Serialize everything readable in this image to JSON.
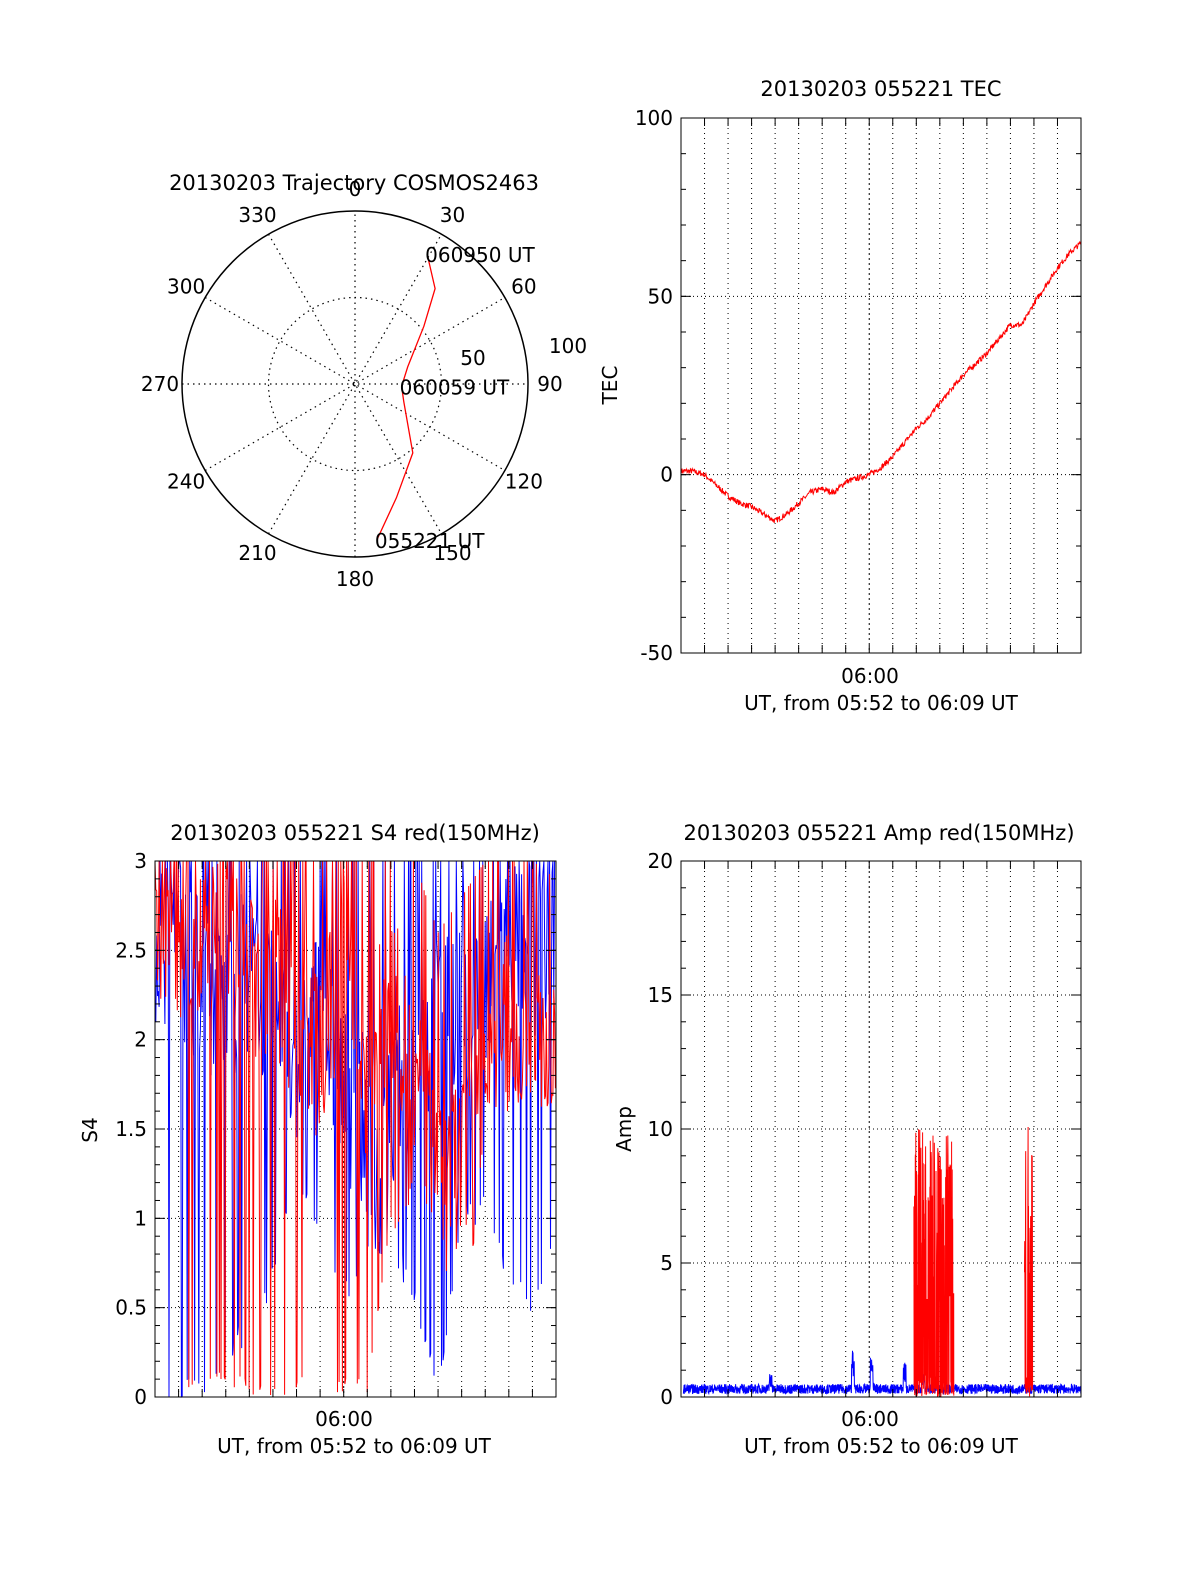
{
  "colors": {
    "red": "#ff0000",
    "blue": "#0000ff",
    "axis": "#000000",
    "grid": "#000000"
  },
  "polar": {
    "title": "20130203 Trajectory COSMOS2463",
    "azimuth_labels": [
      "0",
      "30",
      "60",
      "90",
      "120",
      "150",
      "180",
      "210",
      "240",
      "270",
      "300",
      "330"
    ],
    "radius_labels": [
      "50",
      "100"
    ],
    "chart_data": {
      "type": "scatter",
      "coordinate": "polar",
      "angle_unit": "deg azimuth, clockwise from north",
      "radius_meaning": "zenith angle (deg)",
      "r_max": 100,
      "r_grid": [
        50,
        100
      ],
      "series": [
        {
          "color": "#ff0000",
          "points": [
            {
              "az": 172,
              "r": 91
            },
            {
              "az": 160,
              "r": 70
            },
            {
              "az": 140,
              "r": 52
            },
            {
              "az": 110,
              "r": 30
            },
            {
              "az": 93,
              "r": 27
            },
            {
              "az": 72,
              "r": 32
            },
            {
              "az": 50,
              "r": 52
            },
            {
              "az": 40,
              "r": 72
            },
            {
              "az": 29,
              "r": 86
            }
          ]
        }
      ],
      "annotations": [
        {
          "text": "060950 UT",
          "az": 29,
          "r": 86
        },
        {
          "text": "060059 UT",
          "az": 93,
          "r": 27
        },
        {
          "text": "055221 UT",
          "az": 172,
          "r": 91
        }
      ]
    }
  },
  "tec": {
    "title": "20130203 055221 TEC",
    "ylabel": "TEC",
    "xtick_label": "06:00",
    "xlabel": "UT, from 05:52 to 06:09 UT",
    "chart_data": {
      "type": "line",
      "x_unit": "minutes after 05:52 UT",
      "xlim": [
        0,
        17
      ],
      "ylim": [
        -50,
        100
      ],
      "yticks": [
        -50,
        0,
        50,
        100
      ],
      "series": [
        {
          "color": "#ff0000",
          "x": [
            0,
            0.5,
            1,
            1.5,
            2,
            2.5,
            3,
            3.5,
            4,
            4.5,
            5,
            5.5,
            6,
            6.5,
            7,
            7.5,
            8,
            8.5,
            9,
            9.5,
            10,
            10.5,
            11,
            11.5,
            12,
            12.5,
            13,
            13.5,
            14,
            14.5,
            15,
            15.5,
            16,
            16.5,
            17
          ],
          "y": [
            1,
            1,
            0,
            -3,
            -6,
            -8,
            -9,
            -11,
            -13,
            -11,
            -8,
            -5,
            -4,
            -5,
            -2,
            -1,
            0,
            2,
            5,
            9,
            13,
            16,
            20,
            24,
            28,
            31,
            34,
            38,
            42,
            42,
            48,
            53,
            58,
            62,
            65
          ]
        }
      ]
    }
  },
  "s4": {
    "title": "20130203 055221 S4 red(150MHz)",
    "ylabel": "S4",
    "xtick_label": "06:00",
    "xlabel": "UT, from 05:52 to 06:09 UT",
    "chart_data": {
      "type": "line",
      "x_unit": "minutes after 05:52 UT",
      "xlim": [
        0,
        17
      ],
      "ylim": [
        0,
        3
      ],
      "yticks": [
        0,
        0.5,
        1,
        1.5,
        2,
        2.5,
        3
      ],
      "series": [
        {
          "color": "#0000ff",
          "x": [
            0,
            1,
            2,
            3,
            4,
            5,
            6,
            7,
            8,
            9,
            10,
            11,
            12,
            13,
            14,
            15,
            16,
            17
          ],
          "y": [
            2.6,
            2.5,
            2.3,
            2.2,
            2.4,
            2.1,
            1.9,
            2.2,
            1.7,
            1.5,
            1.6,
            1.9,
            2.1,
            2.3,
            2.2,
            2.6,
            2.5,
            2.7
          ],
          "min": [
            0,
            0,
            0,
            0.2,
            0.3,
            0.6,
            1.2,
            0.8,
            0.5,
            0.7,
            0.8,
            0.5,
            0,
            0.9,
            1.0,
            0.6,
            0.4,
            0.8
          ],
          "max": [
            3,
            3,
            3,
            3,
            3,
            3,
            3,
            3,
            3,
            3,
            3,
            3,
            3,
            3,
            3,
            3,
            3,
            3
          ]
        },
        {
          "color": "#ff0000",
          "x": [
            0,
            1,
            2,
            3,
            4,
            5,
            6,
            7,
            8,
            9,
            10,
            11,
            12,
            13,
            14,
            15,
            16,
            17
          ],
          "y": [
            2.7,
            2.4,
            2.5,
            2.6,
            2.3,
            2.4,
            2.0,
            1.9,
            2.4,
            1.8,
            2.3,
            1.7,
            1.4,
            1.3,
            2.0,
            2.1,
            2.2,
            1.8
          ],
          "min": [
            0,
            0,
            0,
            0,
            0,
            0,
            0,
            0,
            0,
            0,
            0.9,
            1.1,
            1.0,
            0,
            1.5,
            1.6,
            1.7,
            1.5
          ],
          "max": [
            3,
            3,
            3,
            3,
            3,
            3,
            3,
            3,
            3,
            3,
            3,
            3,
            2.6,
            2.8,
            3,
            3,
            3,
            2.9
          ]
        }
      ]
    }
  },
  "amp": {
    "title": "20130203 055221 Amp red(150MHz)",
    "ylabel": "Amp",
    "xtick_label": "06:00",
    "xlabel": "UT, from 05:52 to 06:09 UT",
    "chart_data": {
      "type": "line",
      "x_unit": "minutes after 05:52 UT",
      "xlim": [
        0,
        17
      ],
      "ylim": [
        0,
        20
      ],
      "yticks": [
        0,
        5,
        10,
        15,
        20
      ],
      "series": [
        {
          "color": "#0000ff",
          "baseline": 0.4,
          "spikes": [
            {
              "x": 3.8,
              "y": 0.9
            },
            {
              "x": 7.3,
              "y": 1.8
            },
            {
              "x": 8.1,
              "y": 1.5
            },
            {
              "x": 9.5,
              "y": 1.3
            },
            {
              "x": 10.3,
              "y": 1.0
            }
          ]
        },
        {
          "color": "#ff0000",
          "bursts": [
            {
              "x0": 9.9,
              "x1": 11.6,
              "peak": 10.0
            },
            {
              "x0": 14.6,
              "x1": 14.95,
              "peak": 10.2
            }
          ]
        }
      ]
    }
  }
}
